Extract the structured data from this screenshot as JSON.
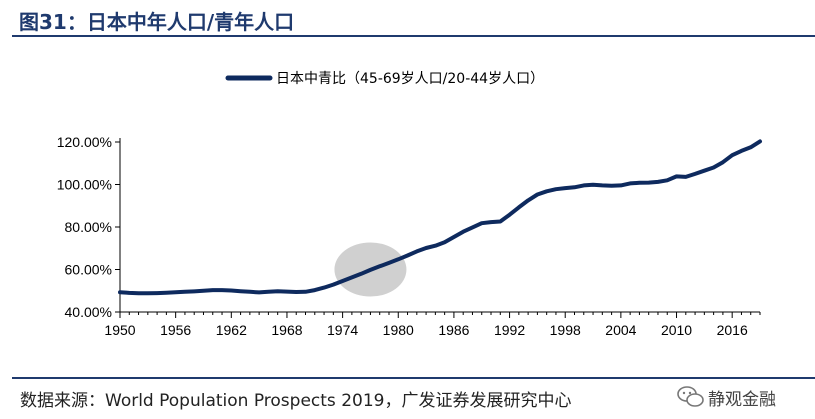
{
  "header": {
    "title": "图31：日本中年人口/青年人口"
  },
  "footer": {
    "source": "数据来源：World Population Prospects 2019，广发证券发展研究中心",
    "watermark": "静观金融"
  },
  "colors": {
    "series": "#0e2a5e",
    "highlight": "#d0d0d0",
    "title": "#1f3a6e"
  },
  "chart_data": {
    "type": "line",
    "title": "",
    "xlabel": "",
    "ylabel": "",
    "xlim": [
      1950,
      2019
    ],
    "ylim": [
      40,
      120
    ],
    "x_ticks": [
      1950,
      1956,
      1962,
      1968,
      1974,
      1980,
      1986,
      1992,
      1998,
      2004,
      2010,
      2016
    ],
    "x_tick_labels": [
      "1950",
      "1956",
      "1962",
      "1968",
      "1974",
      "1980",
      "1986",
      "1992",
      "1998",
      "2004",
      "2010",
      "2016"
    ],
    "y_ticks": [
      40,
      60,
      80,
      100,
      120
    ],
    "y_tick_labels": [
      "40.00%",
      "60.00%",
      "80.00%",
      "100.00%",
      "120.00%"
    ],
    "grid": false,
    "legend_position": "top-center",
    "highlight": {
      "x": 1977,
      "y": 60,
      "shape": "ellipse"
    },
    "series": [
      {
        "name": "日本中青比（45-69岁人口/20-44岁人口）",
        "x": [
          1950,
          1951,
          1952,
          1953,
          1954,
          1955,
          1956,
          1957,
          1958,
          1959,
          1960,
          1961,
          1962,
          1963,
          1964,
          1965,
          1966,
          1967,
          1968,
          1969,
          1970,
          1971,
          1972,
          1973,
          1974,
          1975,
          1976,
          1977,
          1978,
          1979,
          1980,
          1981,
          1982,
          1983,
          1984,
          1985,
          1986,
          1987,
          1988,
          1989,
          1990,
          1991,
          1992,
          1993,
          1994,
          1995,
          1996,
          1997,
          1998,
          1999,
          2000,
          2001,
          2002,
          2003,
          2004,
          2005,
          2006,
          2007,
          2008,
          2009,
          2010,
          2011,
          2012,
          2013,
          2014,
          2015,
          2016,
          2017,
          2018,
          2019
        ],
        "values": [
          49.3,
          49.0,
          48.8,
          48.8,
          48.9,
          49.1,
          49.3,
          49.5,
          49.7,
          50.0,
          50.3,
          50.3,
          50.1,
          49.8,
          49.5,
          49.2,
          49.5,
          49.8,
          49.6,
          49.4,
          49.5,
          50.3,
          51.5,
          52.9,
          54.6,
          56.3,
          58.0,
          59.8,
          61.5,
          63.1,
          64.8,
          66.6,
          68.5,
          70.1,
          71.2,
          72.8,
          75.3,
          77.8,
          79.8,
          81.8,
          82.3,
          82.6,
          85.8,
          89.2,
          92.5,
          95.3,
          96.8,
          97.8,
          98.3,
          98.7,
          99.6,
          99.9,
          99.6,
          99.4,
          99.6,
          100.5,
          100.8,
          100.9,
          101.2,
          102.0,
          103.8,
          103.6,
          105.0,
          106.5,
          108.0,
          110.5,
          113.8,
          115.8,
          117.5,
          120.3
        ]
      }
    ]
  }
}
